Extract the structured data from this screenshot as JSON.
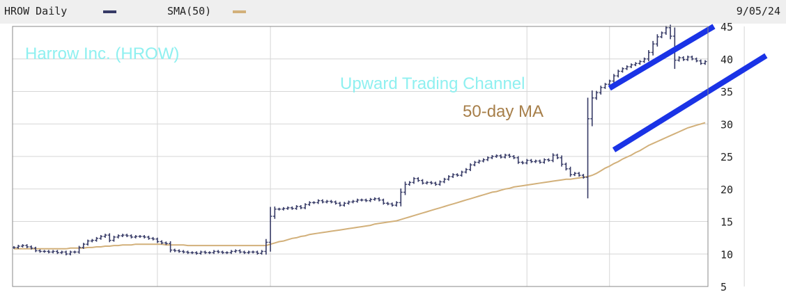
{
  "header": {
    "ticker_label": "HROW Daily",
    "sma_label": "SMA(50)",
    "date": "9/05/24",
    "price_color": "#363a66",
    "sma_color": "#d2b07a"
  },
  "chart_data": {
    "type": "line",
    "title": "",
    "ylim": [
      5,
      45
    ],
    "yticks": [
      5,
      10,
      15,
      20,
      25,
      30,
      35,
      40,
      45
    ],
    "grid": true,
    "series": [
      {
        "name": "HROW Daily",
        "style": "ohlc-bars",
        "color": "#363a66",
        "values": [
          11.0,
          11.2,
          11.3,
          11.1,
          10.9,
          10.5,
          10.4,
          10.4,
          10.3,
          10.4,
          10.2,
          10.3,
          10.0,
          10.3,
          10.3,
          11.0,
          11.5,
          12.0,
          12.1,
          12.4,
          12.7,
          12.9,
          12.1,
          12.6,
          12.8,
          12.9,
          12.8,
          12.6,
          12.7,
          12.7,
          12.6,
          12.4,
          12.3,
          11.9,
          11.7,
          11.6,
          10.6,
          10.5,
          10.4,
          10.3,
          10.2,
          10.2,
          10.1,
          10.3,
          10.2,
          10.2,
          10.4,
          10.3,
          10.2,
          10.2,
          10.4,
          10.5,
          10.3,
          10.2,
          10.3,
          10.3,
          10.1,
          10.4,
          11.8,
          15.8,
          16.9,
          16.9,
          17.0,
          17.1,
          17.0,
          17.3,
          17.1,
          17.6,
          17.9,
          17.9,
          18.2,
          18.0,
          18.1,
          18.0,
          17.8,
          17.5,
          17.8,
          18.0,
          18.1,
          18.3,
          18.3,
          18.2,
          18.4,
          18.5,
          18.3,
          17.8,
          17.7,
          17.5,
          17.9,
          19.5,
          20.7,
          21.0,
          21.6,
          21.3,
          20.9,
          21.0,
          20.9,
          20.7,
          21.1,
          21.5,
          21.9,
          22.2,
          22.1,
          22.6,
          23.0,
          23.7,
          24.1,
          24.3,
          24.5,
          24.8,
          25.0,
          25.1,
          24.9,
          25.2,
          25.0,
          24.8,
          24.1,
          24.0,
          24.4,
          24.2,
          24.3,
          24.1,
          24.5,
          24.4,
          25.2,
          24.8,
          23.8,
          23.1,
          22.2,
          22.4,
          22.1,
          21.8,
          30.8,
          34.0,
          34.8,
          35.6,
          36.1,
          36.6,
          37.4,
          38.1,
          38.5,
          38.8,
          39.1,
          39.3,
          39.6,
          40.0,
          41.0,
          42.3,
          43.4,
          44.0,
          44.8,
          43.5,
          39.8,
          40.2,
          39.9,
          40.3,
          40.0,
          39.7,
          39.3,
          39.6
        ]
      },
      {
        "name": "SMA(50)",
        "style": "line",
        "color": "#d2b07a",
        "values": [
          10.8,
          10.8,
          10.8,
          10.8,
          10.8,
          10.8,
          10.8,
          10.8,
          10.8,
          10.8,
          10.8,
          10.8,
          10.8,
          10.9,
          10.9,
          10.9,
          10.9,
          11.0,
          11.0,
          11.1,
          11.1,
          11.2,
          11.2,
          11.3,
          11.3,
          11.4,
          11.4,
          11.4,
          11.5,
          11.5,
          11.5,
          11.5,
          11.5,
          11.5,
          11.5,
          11.4,
          11.4,
          11.4,
          11.4,
          11.4,
          11.3,
          11.3,
          11.3,
          11.3,
          11.3,
          11.3,
          11.3,
          11.3,
          11.3,
          11.3,
          11.3,
          11.3,
          11.3,
          11.3,
          11.3,
          11.3,
          11.3,
          11.3,
          11.3,
          11.5,
          11.7,
          11.9,
          12.0,
          12.2,
          12.4,
          12.5,
          12.7,
          12.8,
          13.0,
          13.1,
          13.2,
          13.3,
          13.4,
          13.5,
          13.6,
          13.7,
          13.8,
          13.9,
          14.0,
          14.1,
          14.2,
          14.3,
          14.4,
          14.6,
          14.7,
          14.8,
          14.9,
          15.0,
          15.1,
          15.3,
          15.5,
          15.7,
          15.9,
          16.1,
          16.3,
          16.5,
          16.7,
          16.9,
          17.1,
          17.3,
          17.5,
          17.7,
          17.9,
          18.1,
          18.3,
          18.5,
          18.7,
          18.9,
          19.1,
          19.3,
          19.5,
          19.6,
          19.8,
          20.0,
          20.1,
          20.3,
          20.4,
          20.5,
          20.6,
          20.7,
          20.8,
          20.9,
          21.0,
          21.1,
          21.2,
          21.3,
          21.4,
          21.5,
          21.5,
          21.6,
          21.7,
          21.8,
          21.9,
          22.1,
          22.4,
          22.8,
          23.2,
          23.5,
          23.9,
          24.2,
          24.6,
          24.9,
          25.2,
          25.6,
          25.9,
          26.3,
          26.7,
          27.0,
          27.3,
          27.6,
          27.9,
          28.2,
          28.5,
          28.8,
          29.1,
          29.4,
          29.6,
          29.8,
          30.0,
          30.2
        ]
      }
    ],
    "annotations": {
      "company": "Harrow Inc. (HROW)",
      "channel": "Upward Trading Channel",
      "ma_label": "50-day MA",
      "company_color": "#8ff0f0",
      "ma_color": "#a77f4a",
      "channel_color": "#1a33e6",
      "channel_lines": [
        {
          "x_index": [
            137,
            161
          ],
          "y": [
            35.5,
            45.0
          ]
        },
        {
          "x_index": [
            138,
            173
          ],
          "y": [
            26.0,
            40.5
          ]
        }
      ]
    }
  }
}
